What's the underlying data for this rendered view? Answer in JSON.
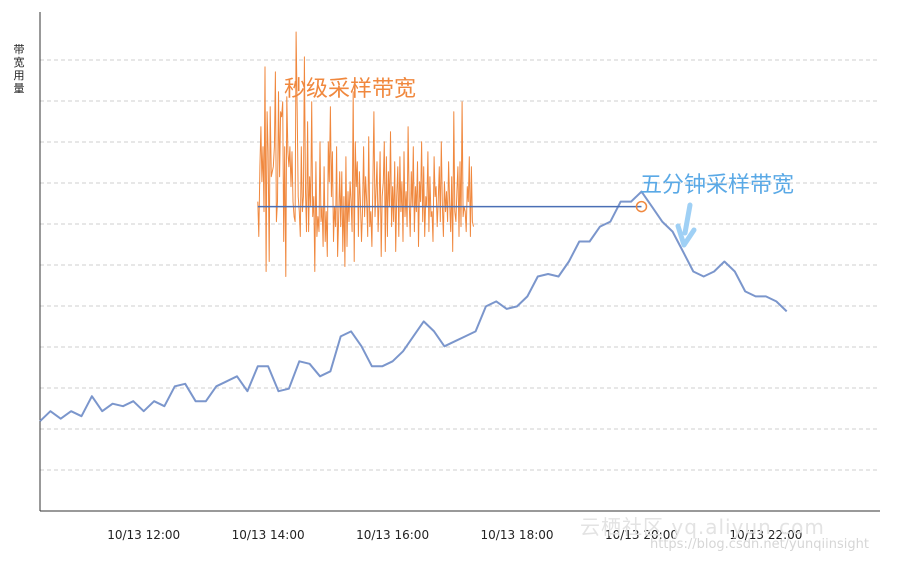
{
  "chart_data": {
    "type": "line",
    "ylabel": "带宽用量",
    "x_ticks": [
      "10/13 12:00",
      "10/13 14:00",
      "10/13 16:00",
      "10/13 18:00",
      "10/13 20:00",
      "10/13 22:00"
    ],
    "x_range": [
      "10/13 10:20",
      "10/13 23:50"
    ],
    "grid": "horizontal dashed",
    "annotations": {
      "second_sampling": "秒级采样带宽",
      "five_minute_sampling": "五分钟采样带宽"
    },
    "reference_level": 61,
    "colors": {
      "five_minute": "#7b96cc",
      "second": "#f0883e",
      "reference": "#4a6fb5",
      "annotation_blue": "#5aa9e6",
      "arrow": "#9fd0f5"
    },
    "series": [
      {
        "key": "five_minute",
        "start": "10/13 10:20",
        "step_minutes": 10,
        "values": [
          18,
          20,
          18.5,
          20,
          19,
          23,
          20,
          21.5,
          21,
          22,
          20,
          22,
          21,
          25,
          25.5,
          22,
          22,
          25,
          26,
          27,
          24,
          29,
          29,
          24,
          24.5,
          30,
          29.5,
          27,
          28,
          35,
          36,
          33,
          29,
          29,
          30,
          32,
          35,
          38,
          36,
          33,
          34,
          35,
          36,
          41,
          42,
          40.5,
          41,
          43,
          47,
          47.5,
          47,
          50,
          54,
          54,
          57,
          58,
          62,
          62,
          64,
          61,
          58,
          56,
          52,
          48,
          47,
          48,
          50,
          48,
          44,
          43,
          43,
          42,
          40
        ]
      },
      {
        "key": "second",
        "start": "10/13 13:50",
        "step_minutes": 1,
        "values": [
          62,
          55,
          69,
          77,
          66,
          73,
          60,
          89,
          48,
          80,
          72,
          50,
          81,
          67,
          68,
          69,
          73,
          88,
          58,
          62,
          84,
          67,
          80,
          79,
          82,
          54,
          73,
          47,
          83,
          72,
          69,
          73,
          65,
          72,
          62,
          59,
          58,
          96,
          80,
          63,
          60,
          55,
          73,
          60,
          63,
          91,
          64,
          56,
          78,
          56,
          67,
          61,
          82,
          59,
          63,
          48,
          70,
          55,
          59,
          56,
          74,
          58,
          61,
          53,
          69,
          54,
          60,
          51,
          74,
          66,
          81,
          63,
          72,
          54,
          61,
          57,
          73,
          51,
          59,
          68,
          57,
          68,
          52,
          63,
          49,
          71,
          53,
          64,
          58,
          66,
          62,
          56,
          84,
          50,
          74,
          65,
          70,
          55,
          68,
          62,
          54,
          60,
          73,
          59,
          67,
          62,
          55,
          75,
          57,
          60,
          53,
          66,
          80,
          59,
          64,
          70,
          56,
          62,
          72,
          51,
          63,
          66,
          74,
          52,
          71,
          55,
          68,
          61,
          76,
          57,
          65,
          58,
          70,
          52,
          63,
          69,
          55,
          71,
          60,
          66,
          54,
          72,
          59,
          64,
          57,
          77,
          62,
          55,
          68,
          61,
          73,
          56,
          65,
          60,
          70,
          53,
          66,
          62,
          74,
          58,
          69,
          55,
          63,
          61,
          72,
          56,
          67,
          59,
          60,
          54,
          71,
          63,
          65,
          57,
          62,
          69,
          58,
          74,
          61,
          55,
          66,
          60,
          64,
          58,
          70,
          62,
          56,
          67,
          52,
          80,
          60,
          58,
          64,
          69,
          55,
          70,
          57,
          82,
          59,
          61,
          60,
          56,
          65,
          62,
          71,
          55,
          69,
          58,
          57
        ]
      }
    ]
  },
  "watermark": {
    "text": "云栖社区 yq.aliyun.com",
    "source": "https://blog.csdn.net/yunqiinsight"
  }
}
